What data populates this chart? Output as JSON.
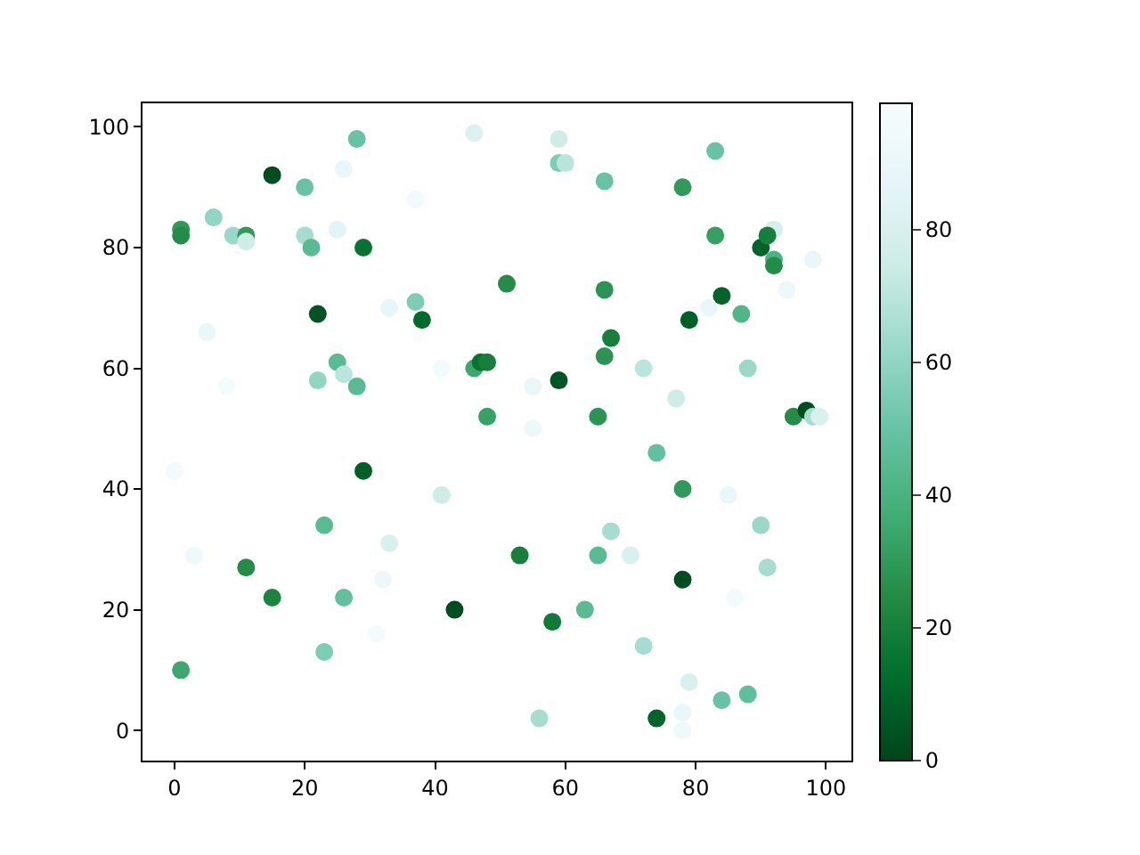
{
  "chart_data": {
    "type": "scatter",
    "x": [
      0,
      1,
      1,
      1,
      3,
      5,
      6,
      8,
      9,
      11,
      11,
      11,
      15,
      15,
      20,
      20,
      21,
      22,
      22,
      23,
      23,
      25,
      25,
      26,
      28,
      26,
      26,
      28,
      29,
      29,
      31,
      32,
      33,
      33,
      37,
      37,
      38,
      41,
      41,
      43,
      46,
      46,
      47,
      48,
      48,
      51,
      53,
      55,
      55,
      56,
      58,
      59,
      59,
      60,
      59,
      63,
      65,
      65,
      66,
      66,
      66,
      67,
      67,
      70,
      72,
      72,
      74,
      74,
      77,
      78,
      78,
      78,
      78,
      78,
      79,
      79,
      83,
      83,
      82,
      84,
      84,
      85,
      86,
      87,
      88,
      88,
      92,
      90,
      91,
      92,
      92,
      90,
      91,
      94,
      95,
      97,
      98,
      99,
      98
    ],
    "values": [
      43,
      83,
      82,
      10,
      29,
      66,
      85,
      57,
      82,
      82,
      81,
      27,
      92,
      22,
      90,
      82,
      80,
      69,
      58,
      34,
      13,
      83,
      61,
      59,
      57,
      93,
      22,
      98,
      80,
      43,
      16,
      25,
      70,
      31,
      88,
      71,
      68,
      60,
      39,
      20,
      99,
      60,
      61,
      61,
      52,
      74,
      29,
      57,
      50,
      2,
      18,
      98,
      94,
      94,
      58,
      20,
      52,
      29,
      91,
      73,
      62,
      65,
      33,
      29,
      60,
      14,
      46,
      2,
      55,
      90,
      40,
      25,
      3,
      0,
      68,
      8,
      96,
      82,
      70,
      72,
      5,
      39,
      22,
      69,
      60,
      6,
      83,
      80,
      82,
      78,
      77,
      34,
      27,
      73,
      52,
      53,
      52,
      52,
      78
    ],
    "cvalues": [
      95,
      30,
      25,
      35,
      93,
      90,
      60,
      97,
      62,
      30,
      75,
      25,
      3,
      22,
      50,
      65,
      45,
      5,
      60,
      45,
      55,
      85,
      45,
      70,
      45,
      90,
      48,
      50,
      15,
      8,
      97,
      92,
      88,
      80,
      95,
      55,
      12,
      95,
      75,
      3,
      82,
      35,
      15,
      20,
      33,
      25,
      20,
      90,
      92,
      65,
      18,
      75,
      55,
      70,
      5,
      45,
      28,
      45,
      50,
      28,
      28,
      20,
      65,
      80,
      70,
      65,
      48,
      10,
      75,
      30,
      30,
      3,
      90,
      93,
      8,
      80,
      50,
      32,
      90,
      10,
      50,
      90,
      95,
      42,
      62,
      47,
      78,
      10,
      20,
      40,
      25,
      62,
      65,
      92,
      25,
      3,
      65,
      80,
      90
    ],
    "clim": [
      0,
      99
    ],
    "cticks": [
      0,
      20,
      40,
      60,
      80
    ],
    "xlim": [
      -4.9,
      103.9
    ],
    "ylim": [
      -5,
      103.9
    ],
    "xticks": [
      0,
      20,
      40,
      60,
      80,
      100
    ],
    "yticks": [
      0,
      20,
      40,
      60,
      80,
      100
    ],
    "marker": "circle",
    "grid": false,
    "legend": false
  }
}
